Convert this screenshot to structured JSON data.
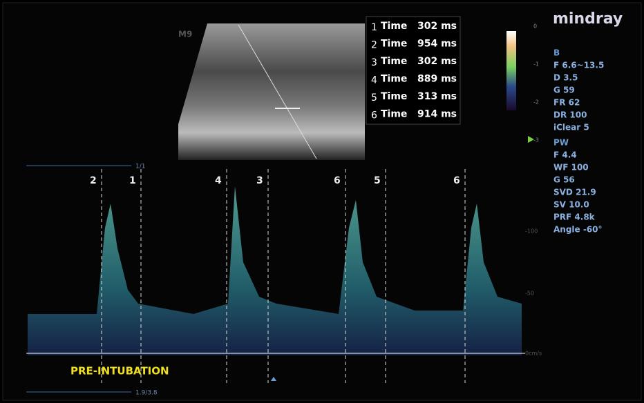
{
  "logo": "mindray",
  "probe": "M9",
  "measurements": [
    {
      "index": "1",
      "label": "Time",
      "value": "302 ms"
    },
    {
      "index": "2",
      "label": "Time",
      "value": "954 ms"
    },
    {
      "index": "3",
      "label": "Time",
      "value": "302 ms"
    },
    {
      "index": "4",
      "label": "Time",
      "value": "889 ms"
    },
    {
      "index": "5",
      "label": "Time",
      "value": "313 ms"
    },
    {
      "index": "6",
      "label": "Time",
      "value": "914 ms"
    }
  ],
  "b_mode": {
    "title": "B",
    "params": [
      "F 6.6~13.5",
      "D 3.5",
      "G 59",
      "FR 62",
      "DR 100",
      "iClear 5"
    ]
  },
  "pw": {
    "title": "PW",
    "params": [
      "F 4.4",
      "WF 100",
      "G 56",
      "SVD 21.9",
      "SV 10.0",
      "PRF 4.8k",
      "Angle -60°"
    ]
  },
  "gray_scale": [
    "0",
    "-1",
    "-2",
    "-3"
  ],
  "velocity_scale": [
    "-100",
    "-50",
    "0cm/s"
  ],
  "b_frame": "1/1",
  "pw_frame": "1.9/3.8",
  "calipers": [
    "2",
    "1",
    "4",
    "3",
    "6",
    "5",
    "6"
  ],
  "annotation": "PRE-INTUBATION"
}
